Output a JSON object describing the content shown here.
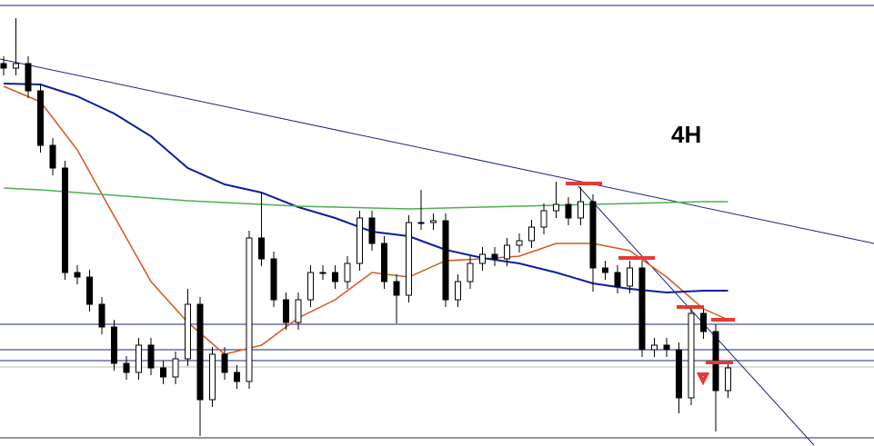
{
  "chart_data": {
    "type": "candlestick",
    "title": "4H",
    "ylim": [
      0,
      491
    ],
    "open": [
      421,
      416,
      421,
      391,
      331,
      306,
      191,
      186,
      156,
      131,
      91,
      81,
      111,
      86,
      76,
      96,
      156,
      51,
      101,
      81,
      71,
      229,
      206,
      161,
      136,
      161,
      191,
      191,
      181,
      201,
      251,
      223,
      181,
      166,
      246,
      246,
      248,
      161,
      181,
      201,
      211,
      206,
      221,
      226,
      241,
      259,
      266,
      251,
      269,
      196,
      191,
      176,
      196,
      106,
      111,
      106,
      53,
      146,
      126,
      61
    ],
    "high": [
      429,
      471,
      429,
      399,
      339,
      314,
      199,
      194,
      164,
      139,
      99,
      119,
      119,
      94,
      104,
      173,
      164,
      109,
      109,
      89,
      237,
      279,
      214,
      169,
      169,
      199,
      199,
      199,
      209,
      259,
      259,
      231,
      189,
      254,
      282,
      256,
      256,
      189,
      209,
      219,
      219,
      229,
      234,
      249,
      267,
      291,
      274,
      285,
      277,
      204,
      199,
      204,
      204,
      119,
      119,
      114,
      154,
      154,
      134,
      94
    ],
    "low": [
      408,
      408,
      383,
      323,
      298,
      183,
      178,
      148,
      123,
      83,
      73,
      73,
      78,
      68,
      68,
      88,
      11,
      43,
      73,
      63,
      63,
      198,
      153,
      128,
      128,
      153,
      183,
      173,
      173,
      193,
      215,
      173,
      135,
      158,
      238,
      238,
      153,
      153,
      173,
      193,
      198,
      198,
      213,
      218,
      233,
      251,
      243,
      243,
      170,
      183,
      168,
      168,
      98,
      98,
      98,
      36,
      45,
      118,
      16,
      53
    ],
    "close": [
      416,
      421,
      391,
      331,
      306,
      191,
      186,
      156,
      131,
      91,
      81,
      111,
      86,
      76,
      96,
      156,
      51,
      101,
      81,
      71,
      229,
      206,
      161,
      136,
      161,
      191,
      191,
      181,
      201,
      251,
      223,
      181,
      166,
      246,
      246,
      248,
      161,
      181,
      201,
      211,
      206,
      221,
      226,
      241,
      259,
      266,
      251,
      269,
      196,
      191,
      176,
      196,
      106,
      111,
      106,
      53,
      146,
      126,
      61,
      86
    ],
    "series": [
      {
        "name": null,
        "color": "#d2581e",
        "x": [
          0,
          3,
          6,
          9,
          12,
          15,
          18,
          21,
          24,
          27,
          30,
          33,
          36,
          39,
          42,
          45,
          48,
          51,
          54,
          57,
          59
        ],
        "values": [
          396,
          379,
          326,
          253,
          181,
          136,
          101,
          111,
          141,
          161,
          191,
          186,
          204,
          206,
          209,
          223,
          223,
          215,
          186,
          151,
          139
        ]
      },
      {
        "name": null,
        "color": "#0a1e9e",
        "x": [
          0,
          3,
          6,
          9,
          12,
          15,
          18,
          21,
          24,
          27,
          30,
          33,
          36,
          39,
          42,
          45,
          48,
          51,
          54,
          57,
          59
        ],
        "values": [
          399,
          398,
          385,
          366,
          341,
          306,
          288,
          279,
          263,
          251,
          236,
          231,
          216,
          207,
          201,
          191,
          179,
          173,
          169,
          171,
          171
        ]
      },
      {
        "name": null,
        "color": "#4caf50",
        "x": [
          0,
          3,
          6,
          9,
          12,
          15,
          18,
          21,
          24,
          27,
          30,
          33,
          36,
          39,
          42,
          45,
          48,
          51,
          54,
          57,
          59
        ],
        "values": [
          284,
          282,
          279,
          276,
          273,
          270,
          268,
          266,
          264,
          263,
          262,
          261,
          262,
          263,
          264,
          265,
          266,
          267,
          268,
          269,
          269
        ]
      }
    ]
  }
}
